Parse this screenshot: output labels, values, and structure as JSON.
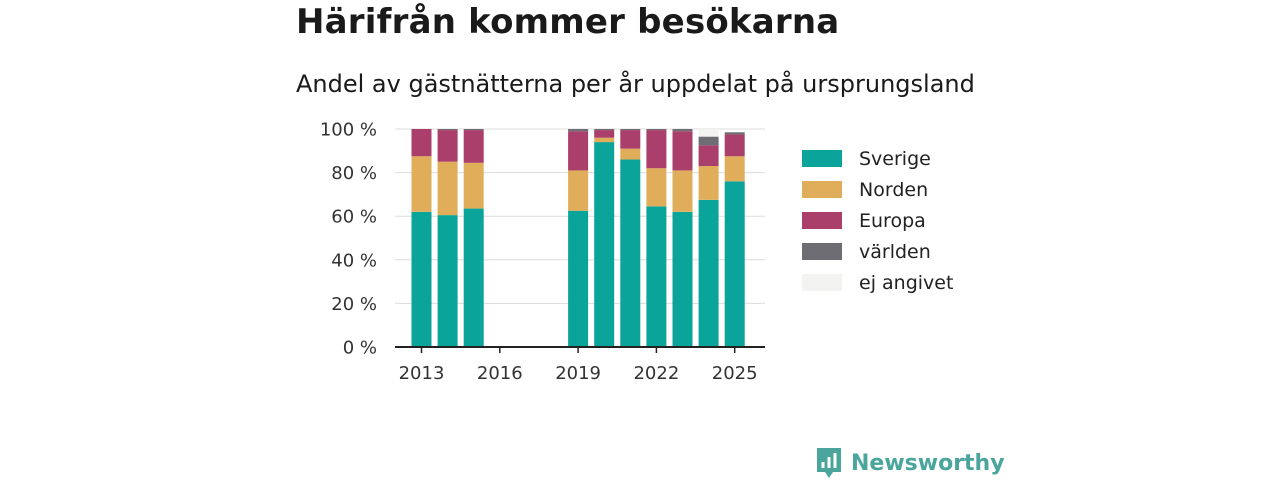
{
  "header": {
    "title": "Härifrån kommer besökarna",
    "subtitle": "Andel av gästnätterna per år uppdelat på ursprungsland"
  },
  "brand": {
    "name": "Newsworthy",
    "color": "#4aa59d"
  },
  "chart_data": {
    "type": "bar",
    "stacked": true,
    "categories": [
      "2013",
      "2014",
      "2015",
      "2016",
      "2017",
      "2018",
      "2019",
      "2020",
      "2021",
      "2022",
      "2023",
      "2024",
      "2025"
    ],
    "x_tick_labels": [
      "2013",
      "2016",
      "2019",
      "2022",
      "2025"
    ],
    "y_tick_labels": [
      "0 %",
      "20 %",
      "40 %",
      "60 %",
      "80 %",
      "100 %"
    ],
    "ylim": [
      0,
      100
    ],
    "grid": true,
    "legend_position": "right",
    "series": [
      {
        "name": "Sverige",
        "color": "#0aa49a",
        "values": [
          62,
          60.5,
          63.5,
          null,
          null,
          null,
          62.5,
          94,
          86,
          64.5,
          62,
          67.5,
          76
        ]
      },
      {
        "name": "Norden",
        "color": "#e0ae5a",
        "values": [
          25.5,
          24.5,
          21,
          null,
          null,
          null,
          18.5,
          2,
          5,
          17.5,
          19,
          15.5,
          11.5
        ]
      },
      {
        "name": "Europa",
        "color": "#a93f6a",
        "values": [
          12.5,
          14.5,
          15,
          null,
          null,
          null,
          18,
          3.5,
          8.5,
          17.5,
          18,
          9.5,
          10
        ]
      },
      {
        "name": "världen",
        "color": "#6e6d73",
        "values": [
          0,
          0.5,
          0.5,
          null,
          null,
          null,
          1,
          0.5,
          0.5,
          0.5,
          1,
          4,
          1
        ]
      },
      {
        "name": "ej angivet",
        "color": "#f3f3f1",
        "values": [
          0,
          0,
          0,
          null,
          null,
          null,
          0,
          0,
          0,
          0,
          0,
          3.5,
          0
        ]
      }
    ]
  }
}
